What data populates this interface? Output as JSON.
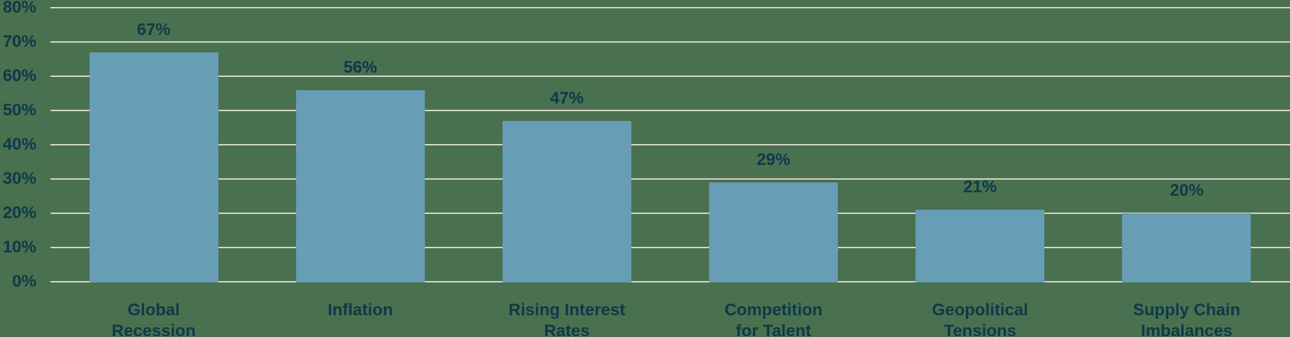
{
  "chart_data": {
    "type": "bar",
    "title": "",
    "xlabel": "",
    "ylabel": "",
    "categories": [
      "Global Recession",
      "Inflation",
      "Rising Interest Rates",
      "Competition for Talent",
      "Geopolitical Tensions",
      "Supply Chain Imbalances"
    ],
    "category_lines": [
      [
        "Global",
        "Recession"
      ],
      [
        "Inflation"
      ],
      [
        "Rising Interest",
        "Rates"
      ],
      [
        "Competition",
        "for Talent"
      ],
      [
        "Geopolitical",
        "Tensions"
      ],
      [
        "Supply Chain",
        "Imbalances"
      ]
    ],
    "values": [
      67,
      56,
      47,
      29,
      21,
      20
    ],
    "value_labels": [
      "67%",
      "56%",
      "47%",
      "29%",
      "21%",
      "20%"
    ],
    "ylim": [
      0,
      80
    ],
    "y_ticks": [
      80,
      70,
      60,
      50,
      40,
      30,
      20,
      10,
      0
    ],
    "y_tick_labels": [
      "80%",
      "70%",
      "60%",
      "50%",
      "40%",
      "30%",
      "20%",
      "10%",
      "0%"
    ],
    "grid": true,
    "legend": false,
    "colors": {
      "background": "#497150",
      "bar": "#679DB5",
      "text": "#0D3A49",
      "gridline": "#D9D6CB"
    }
  }
}
